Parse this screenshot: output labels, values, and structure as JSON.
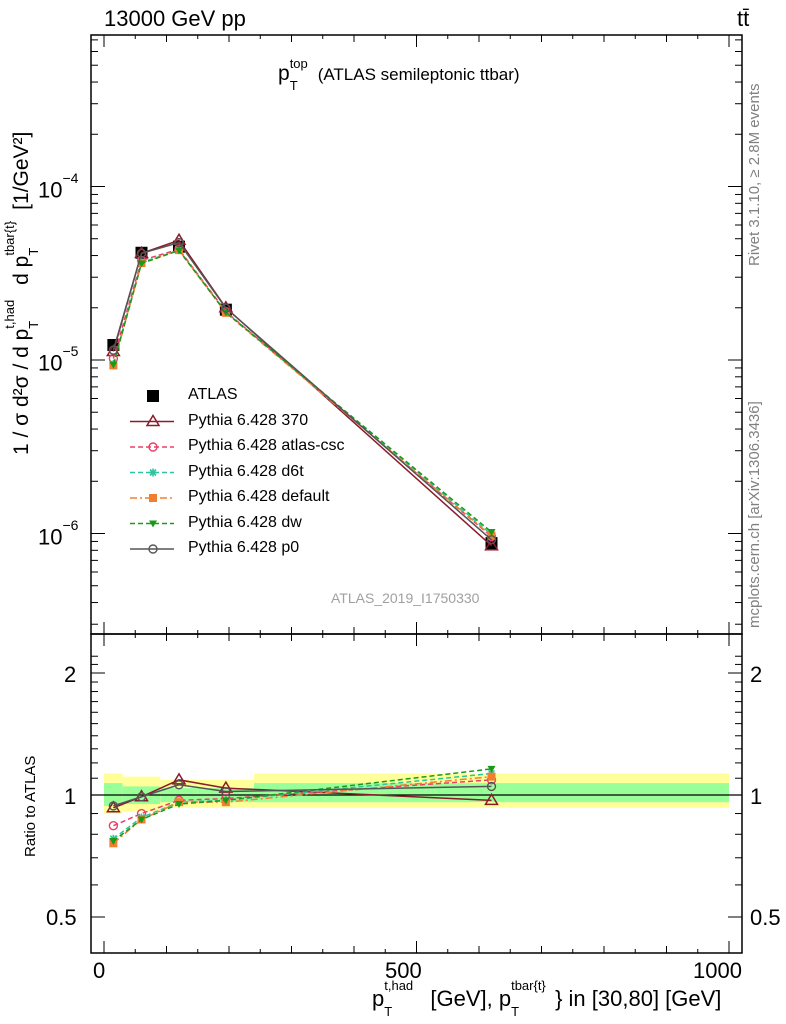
{
  "header": {
    "left": "13000 GeV pp",
    "right": "tt̄"
  },
  "plot": {
    "title_main": "p",
    "title_sup": "top",
    "title_sub": "T",
    "title_paren": "(ATLAS semileptonic ttbar)",
    "watermark": "ATLAS_2019_I1750330",
    "side_rivet": "Rivet 3.1.10, ≥ 2.8M events",
    "side_mcplots": "mcplots.cern.ch [arXiv:1306.3436]"
  },
  "axes": {
    "ylabel_main": "1 / σ d²σ / d p",
    "ylabel_sup1": "t,had",
    "ylabel_sub1": "T",
    "ylabel_mid": " d p",
    "ylabel_sup2": "tbar{t}",
    "ylabel_sub2": "T",
    "ylabel_unit": " [1/GeV²]",
    "ratio_ylabel": "Ratio to ATLAS",
    "xlabel_main": "p",
    "xlabel_sup1": "t,had",
    "xlabel_sub1": "T",
    "xlabel_mid": " [GeV], p",
    "xlabel_sup2": "tbar{t}",
    "xlabel_sub2": "T",
    "xlabel_tail": "} in [30,80] [GeV]",
    "x_ticks": [
      "0",
      "500",
      "1000"
    ],
    "y_ticks_top": [
      "10",
      "10",
      "10"
    ],
    "y_ticks_top_exp": [
      "−4",
      "−5",
      "−6"
    ],
    "y_ticks_ratio": [
      "2",
      "1",
      "0.5"
    ]
  },
  "legend": [
    {
      "label": "ATLAS",
      "color": "#000000",
      "marker": "square-filled",
      "dash": "none"
    },
    {
      "label": "Pythia 6.428 370",
      "color": "#8b1a2a",
      "marker": "triangle-open",
      "dash": "solid"
    },
    {
      "label": "Pythia 6.428 atlas-csc",
      "color": "#e8406a",
      "marker": "circle-open",
      "dash": "dashed"
    },
    {
      "label": "Pythia 6.428 d6t",
      "color": "#2ec4a0",
      "marker": "star",
      "dash": "dashed"
    },
    {
      "label": "Pythia 6.428 default",
      "color": "#f08030",
      "marker": "square-filled",
      "dash": "dashdot"
    },
    {
      "label": "Pythia 6.428 dw",
      "color": "#1a9a1a",
      "marker": "triangle-down-filled",
      "dash": "dashed"
    },
    {
      "label": "Pythia 6.428 p0",
      "color": "#555555",
      "marker": "circle-open",
      "dash": "solid"
    }
  ],
  "chart_data": {
    "type": "line",
    "log_y": true,
    "x": [
      15,
      60,
      120,
      195,
      620
    ],
    "xlim": [
      -25,
      1025
    ],
    "ylim": [
      2.6e-07,
      0.00085
    ],
    "ratio_ylim": [
      0.3,
      2.3
    ],
    "series": [
      {
        "name": "ATLAS",
        "values": [
          1.22e-05,
          4.15e-05,
          4.5e-05,
          1.95e-05,
          8.8e-07
        ]
      },
      {
        "name": "Pythia 6.428 370",
        "values": [
          1.12e-05,
          4.12e-05,
          4.9e-05,
          2e-05,
          8.5e-07
        ]
      },
      {
        "name": "Pythia 6.428 atlas-csc",
        "values": [
          1.02e-05,
          3.75e-05,
          4.35e-05,
          1.9e-05,
          9.6e-07
        ]
      },
      {
        "name": "Pythia 6.428 d6t",
        "values": [
          9.5e-06,
          3.65e-05,
          4.3e-05,
          1.88e-05,
          9.9e-07
        ]
      },
      {
        "name": "Pythia 6.428 default",
        "values": [
          9.3e-06,
          3.62e-05,
          4.3e-05,
          1.87e-05,
          9.7e-07
        ]
      },
      {
        "name": "Pythia 6.428 dw",
        "values": [
          9.4e-06,
          3.6e-05,
          4.28e-05,
          1.88e-05,
          1.02e-06
        ]
      },
      {
        "name": "Pythia 6.428 p0",
        "values": [
          1.14e-05,
          4.12e-05,
          4.75e-05,
          1.99e-05,
          9.2e-07
        ]
      }
    ],
    "ratio_series": [
      {
        "name": "Pythia 6.428 370",
        "values": [
          0.93,
          0.99,
          1.09,
          1.04,
          0.97
        ]
      },
      {
        "name": "Pythia 6.428 atlas-csc",
        "values": [
          0.84,
          0.9,
          0.97,
          0.98,
          1.09
        ]
      },
      {
        "name": "Pythia 6.428 d6t",
        "values": [
          0.78,
          0.88,
          0.96,
          0.97,
          1.13
        ]
      },
      {
        "name": "Pythia 6.428 default",
        "values": [
          0.76,
          0.87,
          0.96,
          0.96,
          1.11
        ]
      },
      {
        "name": "Pythia 6.428 dw",
        "values": [
          0.77,
          0.87,
          0.95,
          0.97,
          1.16
        ]
      },
      {
        "name": "Pythia 6.428 p0",
        "values": [
          0.94,
          0.99,
          1.06,
          1.02,
          1.05
        ]
      }
    ],
    "bins": [
      0,
      30,
      90,
      150,
      240,
      1000
    ],
    "band_inner": [
      [
        0.94,
        1.07
      ],
      [
        0.95,
        1.05
      ],
      [
        0.96,
        1.04
      ],
      [
        0.96,
        1.04
      ],
      [
        0.96,
        1.07
      ]
    ],
    "band_outer": [
      [
        0.9,
        1.13
      ],
      [
        0.91,
        1.11
      ],
      [
        0.93,
        1.09
      ],
      [
        0.93,
        1.09
      ],
      [
        0.93,
        1.13
      ]
    ]
  }
}
